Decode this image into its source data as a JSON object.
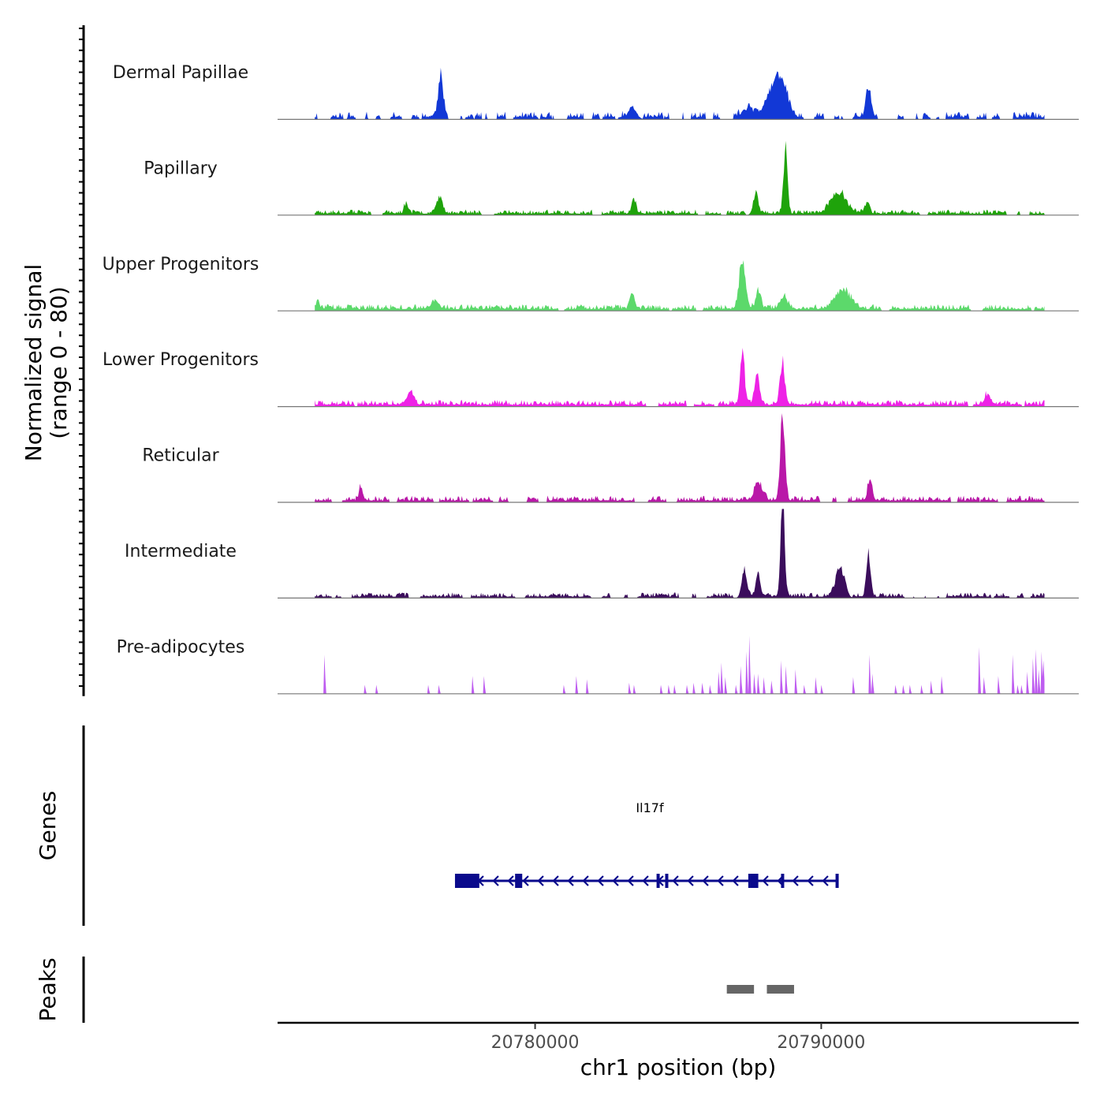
{
  "chart_data": {
    "type": "area",
    "title": "",
    "ylabel_line1": "Normalized signal",
    "ylabel_line2": "(range 0 - 80)",
    "ylim": [
      0,
      80
    ],
    "xlabel": "chr1 position (bp)",
    "xlim": [
      20771000,
      20799000
    ],
    "data_start": 20772300,
    "data_end": 20797800,
    "xticks": [
      20780000,
      20790000
    ],
    "xtick_labels": [
      "20780000",
      "20790000"
    ],
    "genes_label": "Genes",
    "peaks_label": "Peaks",
    "tracks": [
      {
        "name": "Dermal Papillae",
        "color": "#1238d6",
        "noise": 7,
        "noise_gap": 0.45,
        "seed": 11,
        "peaks": [
          [
            20776700,
            35,
            90
          ],
          [
            20788300,
            22,
            260
          ],
          [
            20788600,
            30,
            200
          ],
          [
            20791650,
            28,
            90
          ],
          [
            20787400,
            10,
            180
          ],
          [
            20783400,
            10,
            150
          ]
        ]
      },
      {
        "name": "Papillary",
        "color": "#1fa30b",
        "noise": 5,
        "noise_gap": 0.05,
        "seed": 23,
        "peaks": [
          [
            20788750,
            58,
            70
          ],
          [
            20787700,
            18,
            90
          ],
          [
            20790600,
            20,
            260
          ],
          [
            20776650,
            15,
            110
          ],
          [
            20775500,
            9,
            70
          ],
          [
            20783450,
            13,
            70
          ],
          [
            20791600,
            10,
            80
          ]
        ]
      },
      {
        "name": "Upper Progenitors",
        "color": "#5cd96b",
        "noise": 6,
        "noise_gap": 0.05,
        "seed": 37,
        "peaks": [
          [
            20787250,
            45,
            110
          ],
          [
            20787800,
            16,
            90
          ],
          [
            20788700,
            12,
            110
          ],
          [
            20790750,
            18,
            260
          ],
          [
            20783400,
            12,
            80
          ],
          [
            20776500,
            8,
            120
          ],
          [
            20772400,
            8,
            60
          ]
        ]
      },
      {
        "name": "Lower Progenitors",
        "color": "#ee22e6",
        "noise": 6,
        "noise_gap": 0.05,
        "seed": 41,
        "peaks": [
          [
            20787250,
            45,
            80
          ],
          [
            20788650,
            36,
            90
          ],
          [
            20787750,
            25,
            90
          ],
          [
            20775650,
            12,
            110
          ],
          [
            20795800,
            9,
            100
          ]
        ]
      },
      {
        "name": "Reticular",
        "color": "#b918a8",
        "noise": 6,
        "noise_gap": 0.1,
        "seed": 53,
        "peaks": [
          [
            20788650,
            75,
            80
          ],
          [
            20791700,
            18,
            80
          ],
          [
            20787800,
            15,
            140
          ],
          [
            20773900,
            12,
            60
          ]
        ]
      },
      {
        "name": "Intermediate",
        "color": "#3b0d5c",
        "noise": 5,
        "noise_gap": 0.1,
        "seed": 67,
        "peaks": [
          [
            20788650,
            88,
            70
          ],
          [
            20791650,
            45,
            70
          ],
          [
            20790650,
            28,
            160
          ],
          [
            20787300,
            25,
            90
          ],
          [
            20787800,
            20,
            80
          ]
        ]
      },
      {
        "name": "Pre-adipocytes",
        "color": "#be5cf0",
        "noise": 0,
        "noise_gap": 0.9,
        "seed": 79,
        "spikes": [
          [
            20772650,
            35
          ],
          [
            20774050,
            8
          ],
          [
            20774450,
            8
          ],
          [
            20776250,
            8
          ],
          [
            20776650,
            8
          ],
          [
            20777800,
            16
          ],
          [
            20778200,
            16
          ],
          [
            20781000,
            8
          ],
          [
            20781450,
            16
          ],
          [
            20781800,
            13
          ],
          [
            20783300,
            10
          ],
          [
            20783450,
            8
          ],
          [
            20784400,
            8
          ],
          [
            20784650,
            8
          ],
          [
            20784850,
            8
          ],
          [
            20785300,
            8
          ],
          [
            20785550,
            10
          ],
          [
            20785850,
            10
          ],
          [
            20786100,
            8
          ],
          [
            20786400,
            20
          ],
          [
            20786500,
            28
          ],
          [
            20786650,
            15
          ],
          [
            20787000,
            8
          ],
          [
            20787200,
            25
          ],
          [
            20787400,
            38
          ],
          [
            20787500,
            52
          ],
          [
            20787650,
            18
          ],
          [
            20787800,
            18
          ],
          [
            20788000,
            15
          ],
          [
            20788250,
            12
          ],
          [
            20788600,
            30
          ],
          [
            20788750,
            25
          ],
          [
            20789100,
            22
          ],
          [
            20789400,
            8
          ],
          [
            20789800,
            15
          ],
          [
            20790000,
            8
          ],
          [
            20791100,
            15
          ],
          [
            20791700,
            35
          ],
          [
            20791800,
            18
          ],
          [
            20792600,
            8
          ],
          [
            20792850,
            8
          ],
          [
            20793100,
            8
          ],
          [
            20793500,
            8
          ],
          [
            20793850,
            12
          ],
          [
            20794200,
            16
          ],
          [
            20795500,
            42
          ],
          [
            20795700,
            15
          ],
          [
            20796200,
            16
          ],
          [
            20796700,
            35
          ],
          [
            20796850,
            8
          ],
          [
            20797000,
            8
          ],
          [
            20797200,
            20
          ],
          [
            20797400,
            32
          ],
          [
            20797500,
            40
          ],
          [
            20797600,
            22
          ],
          [
            20797700,
            38
          ],
          [
            20797750,
            30
          ]
        ]
      }
    ],
    "gene": {
      "name": "Il17f",
      "start": 20777200,
      "end": 20790600,
      "strand": "-",
      "exons": [
        [
          20777200,
          20778050
        ],
        [
          20779300,
          20779550
        ],
        [
          20787450,
          20787800
        ],
        [
          20790500,
          20790600
        ]
      ],
      "small_marks": [
        20784300,
        20784600,
        20788650
      ]
    },
    "peak_regions": [
      [
        20786700,
        20787650
      ],
      [
        20788100,
        20789050
      ]
    ]
  }
}
